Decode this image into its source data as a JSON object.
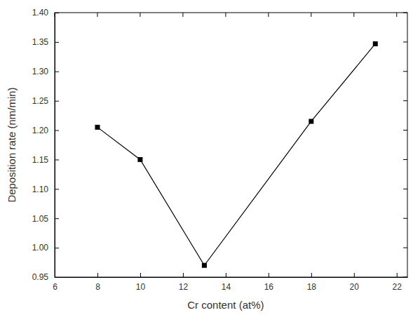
{
  "chart_data": {
    "type": "line",
    "x_label": "Cr content (at%)",
    "y_label": "Deposition rate (nm/min)",
    "x": [
      8,
      10,
      13,
      18,
      21
    ],
    "values": [
      1.205,
      1.15,
      0.97,
      1.215,
      1.347
    ],
    "color": "#000000",
    "marker": "square",
    "line_style": "solid",
    "xlim": [
      6,
      22.5
    ],
    "xticks": [
      6,
      8,
      10,
      12,
      14,
      16,
      18,
      20,
      22
    ],
    "ylim": [
      0.95,
      1.4
    ],
    "yticks": [
      0.95,
      {
        "value": 1.0,
        "label": "1.00"
      },
      1.05,
      {
        "value": 1.1,
        "label": "1.10"
      },
      1.15,
      {
        "value": 1.2,
        "label": "1.20"
      },
      1.25,
      {
        "value": 1.3,
        "label": "1.30"
      },
      1.35,
      {
        "value": 1.4,
        "label": "1.40"
      }
    ],
    "grid": false
  }
}
